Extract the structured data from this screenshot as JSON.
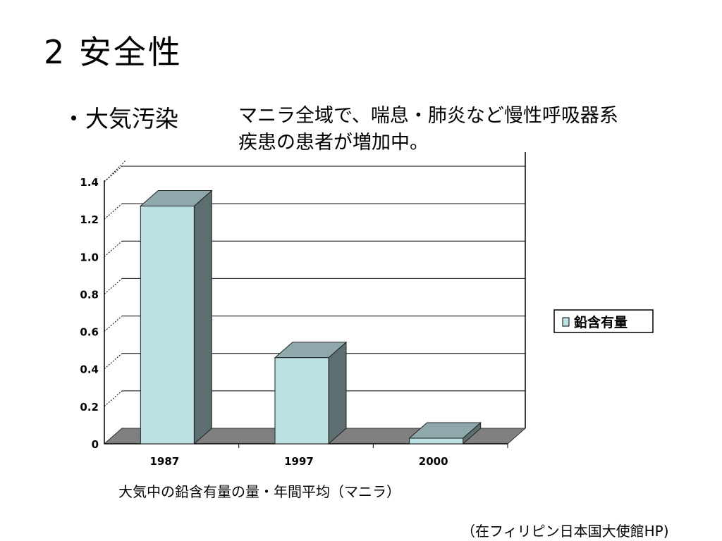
{
  "slide": {
    "title": "2 安全性",
    "bullet_label": "・大気汚染",
    "description": [
      "マニラ全域で、喘息・肺炎など慢性呼吸器系",
      "疾患の患者が増加中。"
    ],
    "caption": "大気中の鉛含有量の量・年間平均（マニラ）",
    "source": "（在フィリピン日本国大使館HP)"
  },
  "chart_data": {
    "type": "bar",
    "categories": [
      "1987",
      "1997",
      "2000"
    ],
    "series": [
      {
        "name": "鉛含有量",
        "values": [
          1.27,
          0.46,
          0.03
        ]
      }
    ],
    "ylim": [
      0,
      1.4
    ],
    "yticks": [
      "0",
      "0.2",
      "0.4",
      "0.6",
      "0.8",
      "1.0",
      "1.2",
      "1.4"
    ],
    "grid": true,
    "legend": "right",
    "colors": {
      "front": "#bde0e4",
      "side": "#5c6e70",
      "top": "#8ea8ab",
      "floor": "#808080"
    }
  }
}
